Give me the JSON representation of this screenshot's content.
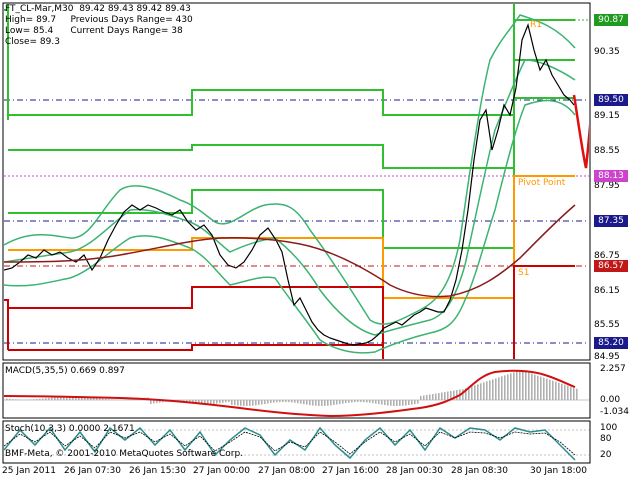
{
  "window": {
    "title": "FT_CL-Mar,M30",
    "ohlc_values": "89.42 89.43 89.42 89.43"
  },
  "info": {
    "high": "High= 89.7",
    "low": "Low= 85.4",
    "close": "Close= 89.3",
    "prev_range": "Previous Days Range= 430",
    "curr_range": "Current Days Range= 38"
  },
  "levels": {
    "r1_label": "R1",
    "pivot_label": "Pivot Point",
    "s1_label": "S1"
  },
  "price_axis": {
    "ticks": [
      "90.35",
      "89.15",
      "88.55",
      "87.95",
      "86.75",
      "86.15",
      "85.55",
      "84.95"
    ],
    "badges": [
      {
        "text": "90.87",
        "color": "#1f9b1f"
      },
      {
        "text": "89.50",
        "color": "#1a1a8c"
      },
      {
        "text": "88.13",
        "color": "#cc44cc"
      },
      {
        "text": "87.35",
        "color": "#1a1a8c"
      },
      {
        "text": "86.57",
        "color": "#c01818"
      },
      {
        "text": "85.20",
        "color": "#1a1a8c"
      }
    ]
  },
  "macd": {
    "title": "MACD(5,35,5) 0.669 0.897",
    "ticks": [
      "2.257",
      "0.00",
      "-1.034"
    ]
  },
  "stoch": {
    "title": "Stoch(10,3,3) 0.0000 2.1671",
    "ticks": [
      "100",
      "80",
      "20"
    ]
  },
  "footer": {
    "copyright": "BMF-Meta, © 2001-2010 MetaQuotes Software Corp."
  },
  "time_axis": {
    "labels": [
      "25 Jan 2011",
      "26 Jan 07:30",
      "26 Jan 15:30",
      "27 Jan 00:00",
      "27 Jan 08:00",
      "27 Jan 16:00",
      "28 Jan 00:30",
      "28 Jan 08:30",
      "30 Jan 18:00"
    ]
  },
  "colors": {
    "bollinger": "#3cb371",
    "price": "#000000",
    "ma": "#8b1a1a",
    "resistance": "#2fbf2f",
    "pivot": "#ff9900",
    "support": "#cc0000",
    "macd_hist": "#b0b0b0",
    "macd_signal": "#d01010",
    "stoch_main": "#2a8c8c",
    "stoch_signal": "#000000",
    "arrow": "#e01010"
  }
}
